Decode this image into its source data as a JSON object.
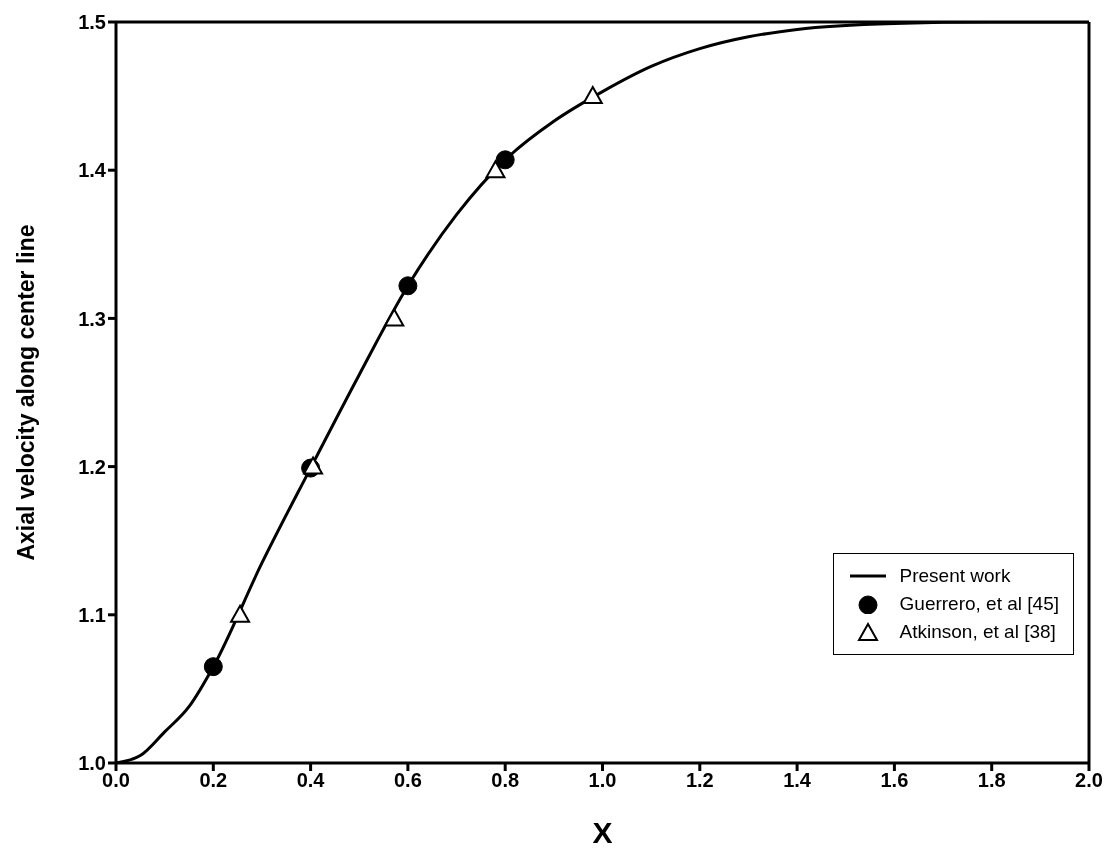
{
  "chart_data": {
    "type": "line",
    "xlabel": "X",
    "ylabel": "Axial velocity along center line",
    "xlim": [
      0,
      2
    ],
    "xticks": [
      {
        "value": 0,
        "label": "0.0"
      },
      0.2,
      0.4,
      0.6,
      0.8,
      {
        "value": 1,
        "label": "1.0"
      },
      1.2,
      1.4,
      1.6,
      1.8,
      {
        "value": 2,
        "label": "2.0"
      }
    ],
    "ylim": [
      1,
      1.5
    ],
    "yticks": [
      {
        "value": 1,
        "label": "1.0"
      },
      1.1,
      1.2,
      1.3,
      1.4,
      1.5
    ],
    "legend": "bottom right",
    "grid": false,
    "series": [
      {
        "name": "Present work",
        "color": "#000000",
        "marker": "none",
        "line_style": "solid",
        "x": [
          0,
          0.05,
          0.1,
          0.15,
          0.2,
          0.3,
          0.4,
          0.5,
          0.6,
          0.7,
          0.8,
          0.9,
          1.0,
          1.1,
          1.2,
          1.3,
          1.4,
          1.6,
          1.8,
          2.0
        ],
        "values": [
          1.0,
          1.005,
          1.021,
          1.038,
          1.065,
          1.135,
          1.199,
          1.262,
          1.322,
          1.37,
          1.407,
          1.433,
          1.453,
          1.47,
          1.482,
          1.49,
          1.495,
          1.499,
          1.5,
          1.5
        ]
      },
      {
        "name": "Guerrero, et al [45]",
        "type": "scatter",
        "color": "#000000",
        "marker": "circle",
        "x": [
          0.2,
          0.4,
          0.6,
          0.8
        ],
        "values": [
          1.065,
          1.199,
          1.322,
          1.407
        ]
      },
      {
        "name": "Atkinson, et al [38]",
        "type": "scatter",
        "color": "#000000",
        "marker": "triangle",
        "x": [
          0.255,
          0.405,
          0.572,
          0.78,
          0.98
        ],
        "values": [
          1.1,
          1.2,
          1.3,
          1.4,
          1.45
        ]
      }
    ]
  }
}
